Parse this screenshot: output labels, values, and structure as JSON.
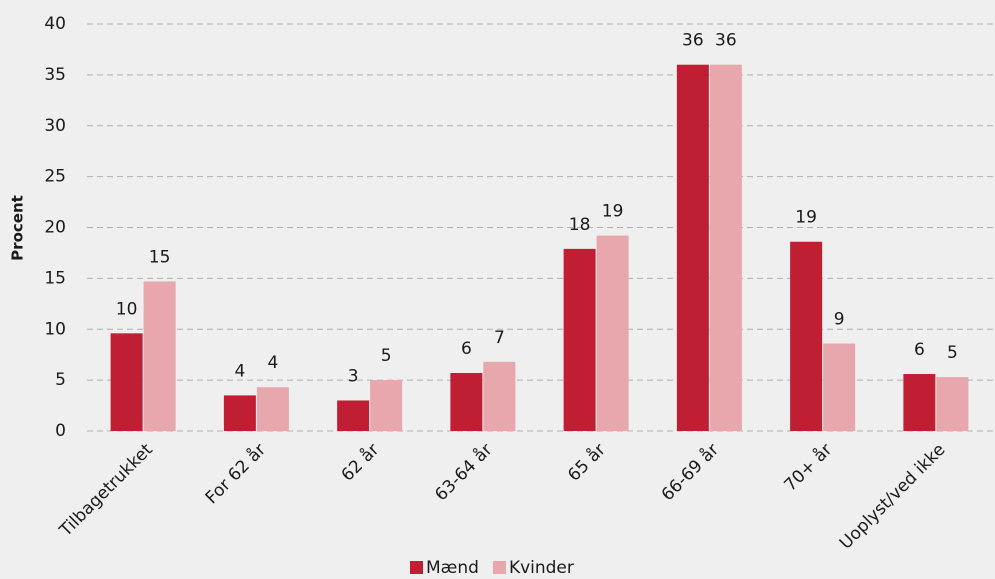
{
  "chart_data": {
    "type": "bar",
    "y_label": "Procent",
    "categories": [
      "Tilbagetrukket",
      "For 62 år",
      "62 år",
      "63-64 år",
      "65 år",
      "66-69 år",
      "70+ år",
      "Uoplyst/ved ikke"
    ],
    "series": [
      {
        "name": "Mænd",
        "color": "#c01f33",
        "values": [
          9.6,
          3.5,
          3.0,
          5.7,
          17.9,
          36.0,
          18.6,
          5.6
        ],
        "value_labels": [
          "10",
          "4",
          "3",
          "6",
          "18",
          "36",
          "19",
          "6"
        ]
      },
      {
        "name": "Kvinder",
        "color": "#e8a7ad",
        "values": [
          14.7,
          4.3,
          5.0,
          6.8,
          19.2,
          36.0,
          8.6,
          5.3
        ],
        "value_labels": [
          "15",
          "4",
          "5",
          "7",
          "19",
          "36",
          "9",
          "5"
        ]
      }
    ],
    "ylim": [
      0,
      40
    ],
    "yticks": [
      0,
      5,
      10,
      15,
      20,
      25,
      30,
      35,
      40
    ],
    "grid": true,
    "legend": "bottom"
  }
}
